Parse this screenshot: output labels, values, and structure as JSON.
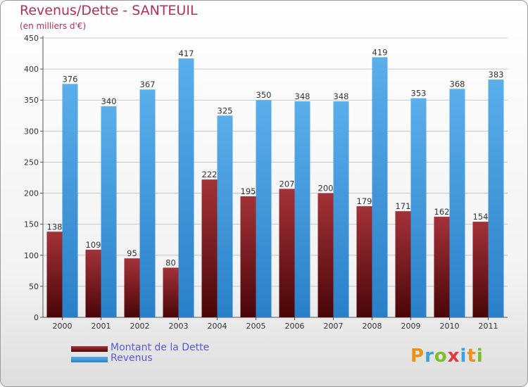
{
  "chart_data": {
    "type": "bar",
    "title": "Revenus/Dette - SANTEUIL",
    "subtitle": "(en milliers d'€)",
    "xlabel": "",
    "ylabel": "",
    "ylim": [
      0,
      450
    ],
    "yticks": [
      "0",
      "50",
      "100",
      "150",
      "200",
      "250",
      "300",
      "350",
      "400",
      "450"
    ],
    "grid": true,
    "legend_position": "bottom-left",
    "categories": [
      "2000",
      "2001",
      "2002",
      "2003",
      "2004",
      "2005",
      "2006",
      "2007",
      "2008",
      "2009",
      "2010",
      "2011"
    ],
    "series": [
      {
        "name": "Montant de la Dette",
        "color": "#7a1a20",
        "values": [
          138,
          109,
          95,
          80,
          222,
          195,
          207,
          200,
          179,
          171,
          162,
          154
        ]
      },
      {
        "name": "Revenus",
        "color": "#3d98e0",
        "values": [
          376,
          340,
          367,
          417,
          325,
          350,
          348,
          348,
          419,
          353,
          368,
          383
        ]
      }
    ]
  },
  "logo": {
    "letters": [
      "P",
      "r",
      "o",
      "x",
      "i",
      "t",
      "i"
    ],
    "colors": [
      "#e8941a",
      "#3aa0e0",
      "#7cbf2a",
      "#e03a3a",
      "#3aa0e0",
      "#e8941a",
      "#7cbf2a"
    ]
  }
}
